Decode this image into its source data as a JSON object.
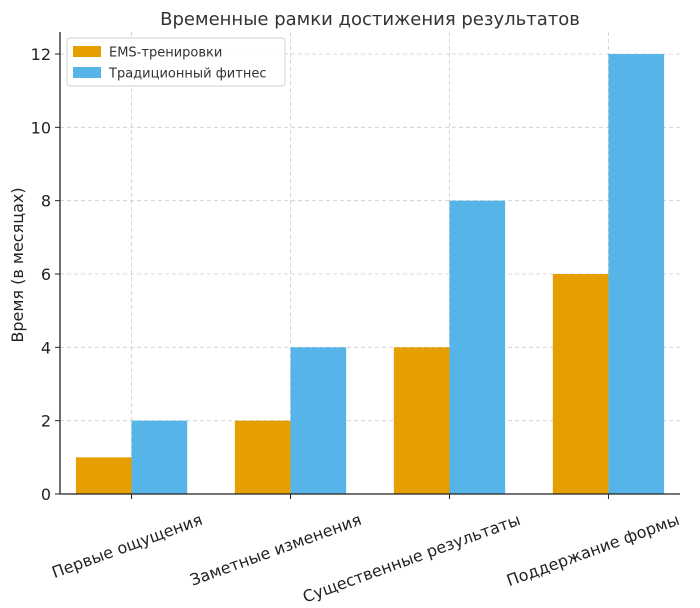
{
  "chart_data": {
    "type": "bar",
    "title": "Временные рамки достижения результатов",
    "xlabel": "",
    "ylabel": "Время (в месяцах)",
    "categories": [
      "Первые ощущения",
      "Заметные изменения",
      "Существенные результаты",
      "Поддержание формы"
    ],
    "series": [
      {
        "name": "EMS-тренировки",
        "values": [
          1,
          2,
          4,
          6
        ],
        "color": "#E69F00"
      },
      {
        "name": "Традиционный фитнес",
        "values": [
          2,
          4,
          8,
          12
        ],
        "color": "#56B4E9"
      }
    ],
    "ylim": [
      0,
      12.6
    ],
    "yticks": [
      "0",
      "2",
      "4",
      "6",
      "8",
      "10",
      "12"
    ],
    "grid": true,
    "legend_position": "top-left"
  }
}
